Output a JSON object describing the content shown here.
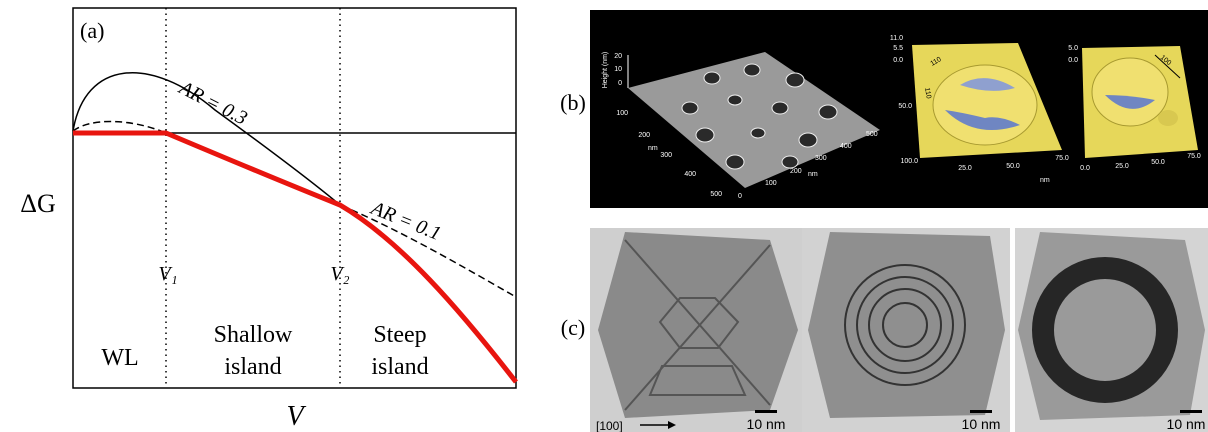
{
  "panel_a": {
    "label": "(a)",
    "y_label": "ΔG",
    "x_label": "V",
    "curve_labels": [
      "AR = 0.3",
      "AR = 0.1"
    ],
    "markers": [
      "V₁",
      "V₂"
    ],
    "regions": [
      [
        "WL"
      ],
      [
        "Shallow",
        "island"
      ],
      [
        "Steep",
        "island"
      ]
    ]
  },
  "panel_b": {
    "label": "(b)",
    "left_image": {
      "axis_title": "Height (nm)",
      "z_ticks": [
        "20",
        "10",
        "0"
      ],
      "y_ticks": [
        "100",
        "200",
        "300",
        "400",
        "500"
      ],
      "x_ticks": [
        "0",
        "100",
        "200",
        "300",
        "400",
        "500"
      ],
      "unit": "nm"
    },
    "middle_image": {
      "z_ticks": [
        "11.0",
        "5.5",
        "0.0"
      ],
      "directions": [
        "110",
        "110"
      ],
      "y_ticks": [
        "50.0",
        "100.0"
      ],
      "x_ticks": [
        "25.0",
        "50.0",
        "75.0"
      ],
      "unit": "nm"
    },
    "right_image": {
      "z_ticks": [
        "5.0",
        "0.0"
      ],
      "direction": "100",
      "x_ticks": [
        "0.0",
        "25.0",
        "50.0",
        "75.0"
      ]
    }
  },
  "panel_c": {
    "label": "(c)",
    "direction": "[100]",
    "scale_bars": [
      "10 nm",
      "10 nm",
      "10 nm"
    ]
  }
}
